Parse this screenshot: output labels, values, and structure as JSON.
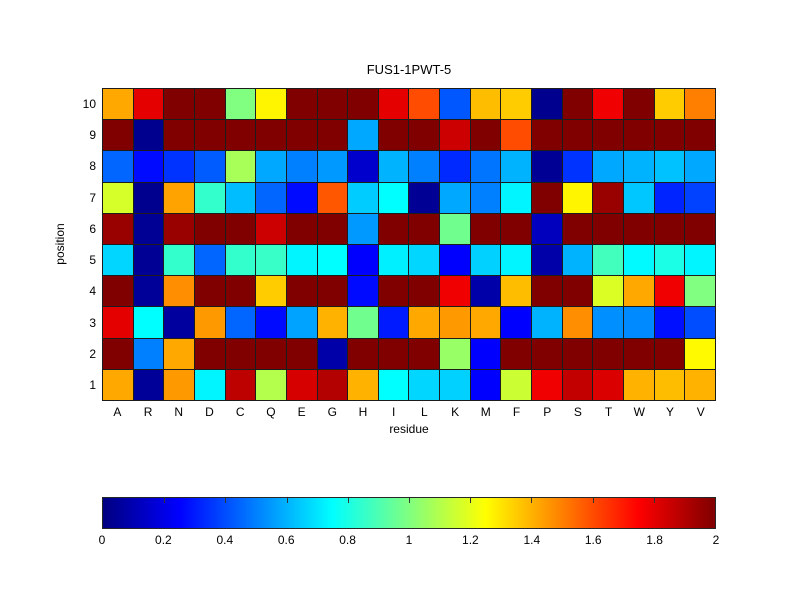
{
  "chart_data": {
    "type": "heatmap",
    "title": "FUS1-1PWT-5",
    "xlabel": "residue",
    "ylabel": "position",
    "colormap": "jet",
    "grid_lines": "on",
    "x_categories": [
      "A",
      "R",
      "N",
      "D",
      "C",
      "Q",
      "E",
      "G",
      "H",
      "I",
      "L",
      "K",
      "M",
      "F",
      "P",
      "S",
      "T",
      "W",
      "Y",
      "V"
    ],
    "y_categories_top_to_bottom": [
      "10",
      "9",
      "8",
      "7",
      "6",
      "5",
      "4",
      "3",
      "2",
      "1"
    ],
    "values_rows_top_to_bottom": [
      [
        1.42,
        1.8,
        2.0,
        2.0,
        1.0,
        1.27,
        2.0,
        2.0,
        2.0,
        1.8,
        1.6,
        0.42,
        1.38,
        1.35,
        0.03,
        2.0,
        1.78,
        2.0,
        1.35,
        1.5
      ],
      [
        2.0,
        0.03,
        2.0,
        2.0,
        2.0,
        2.0,
        2.0,
        2.0,
        0.58,
        2.0,
        2.0,
        1.85,
        2.0,
        1.6,
        2.0,
        2.0,
        2.0,
        2.0,
        2.0,
        2.0
      ],
      [
        0.45,
        0.27,
        0.35,
        0.43,
        1.08,
        0.58,
        0.5,
        0.55,
        0.15,
        0.6,
        0.5,
        0.33,
        0.48,
        0.6,
        0.04,
        0.35,
        0.58,
        0.6,
        0.63,
        0.58
      ],
      [
        1.17,
        0.03,
        1.43,
        0.85,
        0.62,
        0.45,
        0.27,
        1.58,
        0.65,
        0.75,
        0.04,
        0.58,
        0.5,
        0.73,
        2.0,
        1.27,
        1.95,
        0.64,
        0.32,
        0.38
      ],
      [
        1.95,
        0.04,
        1.95,
        2.0,
        2.0,
        1.85,
        2.0,
        2.0,
        0.55,
        2.0,
        2.0,
        0.97,
        2.0,
        2.0,
        0.12,
        2.0,
        2.0,
        2.0,
        2.0,
        2.0
      ],
      [
        0.67,
        0.04,
        0.85,
        0.45,
        0.85,
        0.86,
        0.73,
        0.75,
        0.25,
        0.72,
        0.67,
        0.25,
        0.66,
        0.73,
        0.08,
        0.6,
        0.88,
        0.74,
        0.8,
        0.73
      ],
      [
        2.0,
        0.05,
        1.47,
        2.0,
        2.0,
        1.35,
        2.0,
        2.0,
        0.27,
        2.0,
        2.0,
        1.78,
        0.08,
        1.38,
        2.0,
        2.0,
        1.18,
        1.42,
        1.78,
        1.0
      ],
      [
        1.8,
        0.75,
        0.06,
        1.45,
        0.45,
        0.27,
        0.57,
        1.4,
        0.97,
        0.3,
        1.42,
        1.45,
        1.42,
        0.25,
        0.6,
        1.47,
        0.53,
        0.52,
        0.28,
        0.4
      ],
      [
        2.0,
        0.5,
        1.42,
        2.0,
        2.0,
        2.0,
        2.0,
        0.08,
        2.0,
        2.0,
        2.0,
        1.05,
        0.25,
        2.0,
        2.0,
        2.0,
        2.0,
        2.0,
        2.0,
        1.26
      ],
      [
        1.42,
        0.05,
        1.45,
        0.73,
        1.88,
        1.1,
        1.83,
        1.9,
        1.4,
        0.75,
        0.67,
        0.66,
        0.25,
        1.15,
        1.78,
        1.87,
        1.82,
        1.4,
        1.38,
        1.4
      ]
    ],
    "colorbar": {
      "orientation": "horizontal",
      "position": "bottom",
      "min": 0,
      "max": 2,
      "ticks": [
        0,
        0.2,
        0.4,
        0.6,
        0.8,
        1,
        1.2,
        1.4,
        1.6,
        1.8,
        2
      ],
      "tick_labels": [
        "0",
        "0.2",
        "0.4",
        "0.6",
        "0.8",
        "1",
        "1.2",
        "1.4",
        "1.6",
        "1.8",
        "2"
      ]
    },
    "colors": {
      "background": "#ffffff",
      "cell_edge": "#1c1c1c",
      "text": "#000000",
      "jet_low": "#000080",
      "jet_high": "#800000"
    }
  }
}
